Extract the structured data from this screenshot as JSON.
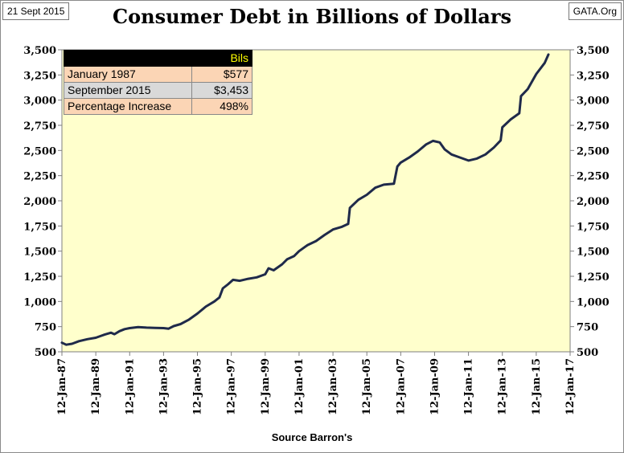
{
  "header": {
    "date_label": "21 Sept 2015",
    "source_label": "GATA.Org",
    "title": "Consumer Debt in Billions of Dollars"
  },
  "footer": {
    "caption": "Source Barron's"
  },
  "stats_table": {
    "header_value": "Bils",
    "rows": [
      {
        "label": "January 1987",
        "value": "$577"
      },
      {
        "label": "September 2015",
        "value": "$3,453"
      },
      {
        "label": "Percentage Increase",
        "value": "498%"
      }
    ]
  },
  "colors": {
    "plot_background": "#ffffcc",
    "line": "#1f2a4a",
    "table_header_text": "#ffff00",
    "table_row_peach": "#fbd5b5",
    "table_row_gray": "#d9d9d9"
  },
  "chart_data": {
    "type": "line",
    "title": "Consumer Debt in Billions of Dollars",
    "xlabel": "Source Barron's",
    "ylabel": "",
    "ylim": [
      500,
      3500
    ],
    "xlim": [
      "1987-01-12",
      "2017-01-12"
    ],
    "grid": false,
    "y_ticks": [
      "500",
      "750",
      "1,000",
      "1,250",
      "1,500",
      "1,750",
      "2,000",
      "2,250",
      "2,500",
      "2,750",
      "3,000",
      "3,250",
      "3,500"
    ],
    "y_tick_values": [
      500,
      750,
      1000,
      1250,
      1500,
      1750,
      2000,
      2250,
      2500,
      2750,
      3000,
      3250,
      3500
    ],
    "x_ticks": [
      "12-Jan-87",
      "12-Jan-89",
      "12-Jan-91",
      "12-Jan-93",
      "12-Jan-95",
      "12-Jan-97",
      "12-Jan-99",
      "12-Jan-01",
      "12-Jan-03",
      "12-Jan-05",
      "12-Jan-07",
      "12-Jan-09",
      "12-Jan-11",
      "12-Jan-13",
      "12-Jan-15",
      "12-Jan-17"
    ],
    "x_tick_values": [
      1987,
      1989,
      1991,
      1993,
      1995,
      1997,
      1999,
      2001,
      2003,
      2005,
      2007,
      2009,
      2011,
      2013,
      2015,
      2017
    ],
    "series": [
      {
        "points": [
          [
            1987.0,
            590
          ],
          [
            1987.25,
            570
          ],
          [
            1987.6,
            580
          ],
          [
            1988.0,
            605
          ],
          [
            1988.5,
            625
          ],
          [
            1989.0,
            640
          ],
          [
            1989.5,
            670
          ],
          [
            1989.9,
            690
          ],
          [
            1990.1,
            675
          ],
          [
            1990.4,
            705
          ],
          [
            1990.7,
            725
          ],
          [
            1991.0,
            735
          ],
          [
            1991.5,
            745
          ],
          [
            1992.0,
            740
          ],
          [
            1992.5,
            738
          ],
          [
            1993.0,
            735
          ],
          [
            1993.3,
            730
          ],
          [
            1993.6,
            755
          ],
          [
            1994.0,
            775
          ],
          [
            1994.5,
            820
          ],
          [
            1995.0,
            880
          ],
          [
            1995.5,
            950
          ],
          [
            1996.0,
            1000
          ],
          [
            1996.3,
            1040
          ],
          [
            1996.5,
            1130
          ],
          [
            1996.8,
            1170
          ],
          [
            1997.1,
            1215
          ],
          [
            1997.5,
            1205
          ],
          [
            1998.0,
            1225
          ],
          [
            1998.5,
            1240
          ],
          [
            1999.0,
            1270
          ],
          [
            1999.2,
            1330
          ],
          [
            1999.5,
            1310
          ],
          [
            2000.0,
            1370
          ],
          [
            2000.3,
            1420
          ],
          [
            2000.7,
            1450
          ],
          [
            2001.0,
            1500
          ],
          [
            2001.5,
            1560
          ],
          [
            2002.0,
            1600
          ],
          [
            2002.5,
            1660
          ],
          [
            2003.0,
            1715
          ],
          [
            2003.5,
            1740
          ],
          [
            2003.9,
            1770
          ],
          [
            2004.0,
            1930
          ],
          [
            2004.5,
            2010
          ],
          [
            2005.0,
            2060
          ],
          [
            2005.5,
            2130
          ],
          [
            2006.0,
            2160
          ],
          [
            2006.6,
            2170
          ],
          [
            2006.8,
            2340
          ],
          [
            2007.0,
            2380
          ],
          [
            2007.5,
            2430
          ],
          [
            2008.0,
            2490
          ],
          [
            2008.5,
            2560
          ],
          [
            2008.9,
            2595
          ],
          [
            2009.3,
            2580
          ],
          [
            2009.6,
            2510
          ],
          [
            2010.0,
            2460
          ],
          [
            2010.5,
            2430
          ],
          [
            2011.0,
            2400
          ],
          [
            2011.5,
            2420
          ],
          [
            2012.0,
            2460
          ],
          [
            2012.5,
            2530
          ],
          [
            2012.9,
            2600
          ],
          [
            2013.0,
            2730
          ],
          [
            2013.5,
            2810
          ],
          [
            2014.0,
            2870
          ],
          [
            2014.1,
            3040
          ],
          [
            2014.5,
            3110
          ],
          [
            2015.0,
            3260
          ],
          [
            2015.5,
            3370
          ],
          [
            2015.72,
            3453
          ]
        ]
      }
    ],
    "table": {
      "columns": [
        "",
        "Bils"
      ],
      "rows": [
        [
          "January 1987",
          "$577"
        ],
        [
          "September 2015",
          "$3,453"
        ],
        [
          "Percentage Increase",
          "498%"
        ]
      ]
    }
  }
}
